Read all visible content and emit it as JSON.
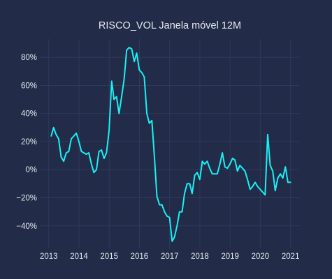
{
  "chart_data": {
    "type": "line",
    "title": "RISCO_VOL Janela móvel 12M",
    "xlabel": "",
    "ylabel": "",
    "x_range": [
      "2012-09-15",
      "2021-04-15"
    ],
    "y_range": [
      -0.56,
      0.93
    ],
    "y_format": "percent",
    "grid": true,
    "legend": "none",
    "colors": {
      "background": "#222b47",
      "grid": "#2f3a5c",
      "line": "#19f0f5",
      "text": "#e6e9f0"
    },
    "x_ticks": [
      {
        "value": "2013-01-01",
        "label": "2013"
      },
      {
        "value": "2014-01-01",
        "label": "2014"
      },
      {
        "value": "2015-01-01",
        "label": "2015"
      },
      {
        "value": "2016-01-01",
        "label": "2016"
      },
      {
        "value": "2017-01-01",
        "label": "2017"
      },
      {
        "value": "2018-01-01",
        "label": "2018"
      },
      {
        "value": "2019-01-01",
        "label": "2019"
      },
      {
        "value": "2020-01-01",
        "label": "2020"
      },
      {
        "value": "2021-01-01",
        "label": "2021"
      }
    ],
    "y_ticks": [
      {
        "value": -0.4,
        "label": "−40%"
      },
      {
        "value": -0.2,
        "label": "−20%"
      },
      {
        "value": 0.0,
        "label": "0%"
      },
      {
        "value": 0.2,
        "label": "20%"
      },
      {
        "value": 0.4,
        "label": "40%"
      },
      {
        "value": 0.6,
        "label": "60%"
      },
      {
        "value": 0.8,
        "label": "80%"
      }
    ],
    "series": [
      {
        "x": [
          "2013-01-31",
          "2013-02-28",
          "2013-03-31",
          "2013-04-30",
          "2013-05-31",
          "2013-06-30",
          "2013-07-31",
          "2013-08-31",
          "2013-09-30",
          "2013-10-31",
          "2013-11-30",
          "2013-12-31",
          "2014-01-31",
          "2014-02-28",
          "2014-03-31",
          "2014-04-30",
          "2014-05-31",
          "2014-06-30",
          "2014-07-31",
          "2014-08-31",
          "2014-09-30",
          "2014-10-31",
          "2014-11-30",
          "2014-12-31",
          "2015-01-31",
          "2015-02-28",
          "2015-03-31",
          "2015-04-30",
          "2015-05-31",
          "2015-06-30",
          "2015-07-31",
          "2015-08-31",
          "2015-09-30",
          "2015-10-31",
          "2015-11-30",
          "2015-12-31",
          "2016-01-31",
          "2016-02-29",
          "2016-03-31",
          "2016-04-30",
          "2016-05-31",
          "2016-06-30",
          "2016-07-31",
          "2016-08-31",
          "2016-09-30",
          "2016-10-31",
          "2016-11-30",
          "2016-12-31",
          "2017-01-31",
          "2017-02-28",
          "2017-03-31",
          "2017-04-30",
          "2017-05-31",
          "2017-06-30",
          "2017-07-31",
          "2017-08-31",
          "2017-09-30",
          "2017-10-31",
          "2017-11-30",
          "2017-12-31",
          "2018-01-31",
          "2018-02-28",
          "2018-03-31",
          "2018-04-30",
          "2018-05-31",
          "2018-06-30",
          "2018-07-31",
          "2018-08-31",
          "2018-09-30",
          "2018-10-31",
          "2018-11-30",
          "2018-12-31",
          "2019-01-31",
          "2019-02-28",
          "2019-03-31",
          "2019-04-30",
          "2019-05-31",
          "2019-06-30",
          "2019-07-31",
          "2019-08-31",
          "2019-09-30",
          "2019-10-31",
          "2019-11-30",
          "2019-12-31",
          "2020-01-31",
          "2020-02-29",
          "2020-03-31",
          "2020-04-30",
          "2020-05-31",
          "2020-06-30",
          "2020-07-31",
          "2020-08-31",
          "2020-09-30",
          "2020-10-31",
          "2020-11-30",
          "2020-12-31"
        ],
        "values": [
          0.24,
          0.3,
          0.25,
          0.22,
          0.09,
          0.06,
          0.12,
          0.13,
          0.22,
          0.24,
          0.26,
          0.2,
          0.13,
          0.12,
          0.11,
          0.12,
          0.04,
          -0.02,
          0.0,
          0.13,
          0.14,
          0.08,
          0.12,
          0.28,
          0.63,
          0.5,
          0.52,
          0.4,
          0.52,
          0.64,
          0.85,
          0.87,
          0.86,
          0.77,
          0.83,
          0.71,
          0.69,
          0.66,
          0.4,
          0.33,
          0.35,
          0.1,
          -0.19,
          -0.25,
          -0.25,
          -0.3,
          -0.33,
          -0.34,
          -0.51,
          -0.48,
          -0.4,
          -0.3,
          -0.3,
          -0.17,
          -0.1,
          -0.1,
          -0.17,
          -0.04,
          -0.02,
          -0.07,
          0.06,
          0.04,
          0.06,
          0.01,
          -0.03,
          -0.03,
          -0.03,
          0.04,
          0.12,
          0.02,
          0.01,
          0.04,
          0.08,
          0.07,
          -0.01,
          0.03,
          0.01,
          -0.01,
          -0.07,
          -0.14,
          -0.12,
          -0.09,
          -0.12,
          -0.14,
          -0.16,
          -0.18,
          0.25,
          0.03,
          -0.01,
          -0.15,
          -0.06,
          -0.03,
          -0.06,
          0.02,
          -0.09,
          -0.09
        ]
      }
    ]
  }
}
